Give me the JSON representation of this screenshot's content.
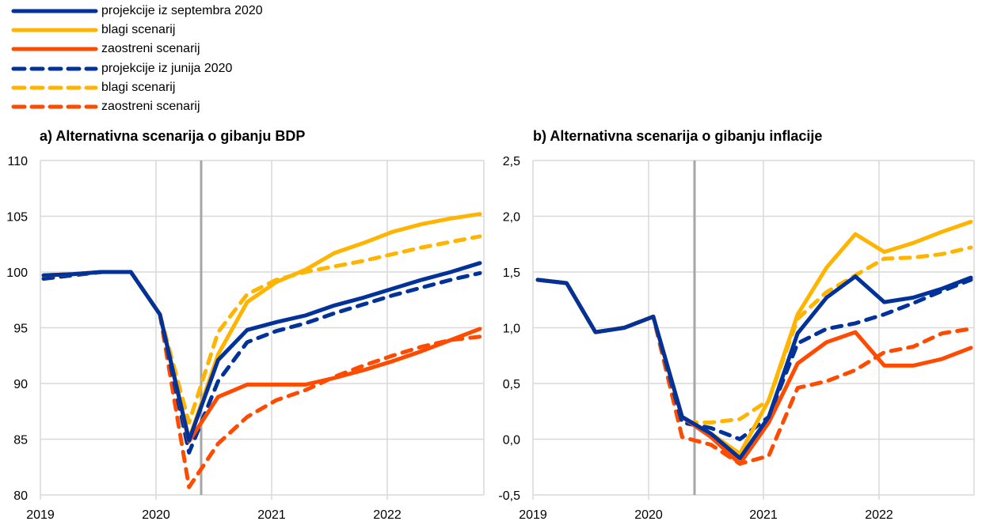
{
  "legend": [
    {
      "label": "projekcije iz septembra 2020",
      "color": "#003299",
      "style": "solid"
    },
    {
      "label": "blagi scenarij",
      "color": "#FFB400",
      "style": "solid"
    },
    {
      "label": "zaostreni scenarij",
      "color": "#FF4B00",
      "style": "solid"
    },
    {
      "label": "projekcije iz junija 2020",
      "color": "#003299",
      "style": "dashed"
    },
    {
      "label": "blagi scenarij",
      "color": "#FFB400",
      "style": "dashed"
    },
    {
      "label": "zaostreni scenarij",
      "color": "#FF4B00",
      "style": "dashed"
    }
  ],
  "chart_data": [
    {
      "type": "line",
      "title": "a) Alternativna scenarija o gibanju BDP",
      "xlabel": "",
      "ylabel": "",
      "x_ticks": [
        "2019",
        "2020",
        "2021",
        "2022"
      ],
      "x": [
        "2019Q1",
        "2019Q2",
        "2019Q3",
        "2019Q4",
        "2020Q1",
        "2020Q2",
        "2020Q3",
        "2020Q4",
        "2021Q1",
        "2021Q2",
        "2021Q3",
        "2021Q4",
        "2022Q1",
        "2022Q2",
        "2022Q3",
        "2022Q4"
      ],
      "y_ticks": [
        "110",
        "105",
        "100",
        "95",
        "90",
        "85",
        "80"
      ],
      "ylim": [
        80,
        110
      ],
      "grid": true,
      "vertical_marker": "2020Q2",
      "series": [
        {
          "name": "projekcije iz septembra 2020",
          "color": "#003299",
          "style": "solid",
          "values": [
            99.7,
            99.8,
            100.0,
            100.0,
            96.2,
            84.9,
            92.1,
            94.8,
            95.5,
            96.1,
            97.0,
            97.7,
            98.5,
            99.3,
            100.0,
            100.8
          ]
        },
        {
          "name": "blagi scenarij",
          "color": "#FFB400",
          "style": "solid",
          "values": [
            99.7,
            99.8,
            100.0,
            100.0,
            96.2,
            85.0,
            92.6,
            97.3,
            99.1,
            100.2,
            101.7,
            102.6,
            103.6,
            104.3,
            104.8,
            105.2
          ]
        },
        {
          "name": "zaostreni scenarij",
          "color": "#FF4B00",
          "style": "solid",
          "values": [
            99.7,
            99.8,
            100.0,
            100.0,
            96.2,
            84.8,
            88.8,
            89.9,
            89.9,
            89.9,
            90.5,
            91.2,
            92.0,
            92.9,
            93.9,
            94.9
          ]
        },
        {
          "name": "projekcije iz junija 2020",
          "color": "#003299",
          "style": "dashed",
          "values": [
            99.4,
            99.7,
            100.0,
            100.0,
            96.2,
            83.8,
            90.2,
            93.7,
            94.7,
            95.4,
            96.3,
            97.1,
            97.9,
            98.6,
            99.3,
            99.9
          ]
        },
        {
          "name": "blagi scenarij",
          "color": "#FFB400",
          "style": "dashed",
          "values": [
            99.4,
            99.7,
            100.0,
            100.0,
            96.2,
            86.5,
            94.6,
            98.0,
            99.3,
            100.0,
            100.5,
            101.0,
            101.6,
            102.2,
            102.7,
            103.2
          ]
        },
        {
          "name": "zaostreni scenarij",
          "color": "#FF4B00",
          "style": "dashed",
          "values": [
            99.4,
            99.7,
            100.0,
            100.0,
            96.2,
            80.7,
            84.6,
            87.0,
            88.5,
            89.4,
            90.6,
            91.6,
            92.5,
            93.3,
            93.9,
            94.2
          ]
        }
      ]
    },
    {
      "type": "line",
      "title": "b) Alternativna scenarija o gibanju inflacije",
      "xlabel": "",
      "ylabel": "",
      "x_ticks": [
        "2019",
        "2020",
        "2021",
        "2022"
      ],
      "x": [
        "2019Q1",
        "2019Q2",
        "2019Q3",
        "2019Q4",
        "2020Q1",
        "2020Q2",
        "2020Q3",
        "2020Q4",
        "2021Q1",
        "2021Q2",
        "2021Q3",
        "2021Q4",
        "2022Q1",
        "2022Q2",
        "2022Q3",
        "2022Q4"
      ],
      "y_ticks": [
        "2,5",
        "2,0",
        "1,5",
        "1,0",
        "0,5",
        "0,0",
        "-0,5"
      ],
      "ylim": [
        -0.5,
        2.5
      ],
      "grid": true,
      "vertical_marker": "2020Q2",
      "series": [
        {
          "name": "projekcije iz septembra 2020",
          "color": "#003299",
          "style": "solid",
          "values": [
            1.43,
            1.4,
            0.96,
            1.0,
            1.1,
            0.2,
            0.05,
            -0.17,
            0.2,
            0.95,
            1.27,
            1.46,
            1.23,
            1.27,
            1.35,
            1.45
          ]
        },
        {
          "name": "blagi scenarij",
          "color": "#FFB400",
          "style": "solid",
          "values": [
            1.43,
            1.4,
            0.96,
            1.0,
            1.1,
            0.2,
            0.05,
            -0.13,
            0.35,
            1.12,
            1.54,
            1.84,
            1.68,
            1.76,
            1.86,
            1.95
          ]
        },
        {
          "name": "zaostreni scenarij",
          "color": "#FF4B00",
          "style": "solid",
          "values": [
            1.43,
            1.4,
            0.96,
            1.0,
            1.1,
            0.2,
            0.02,
            -0.22,
            0.15,
            0.68,
            0.87,
            0.96,
            0.66,
            0.66,
            0.72,
            0.82
          ]
        },
        {
          "name": "projekcije iz junija 2020",
          "color": "#003299",
          "style": "dashed",
          "values": [
            1.43,
            1.4,
            0.96,
            1.0,
            1.1,
            0.15,
            0.1,
            0.0,
            0.2,
            0.86,
            0.99,
            1.04,
            1.12,
            1.22,
            1.33,
            1.43
          ]
        },
        {
          "name": "blagi scenarij",
          "color": "#FFB400",
          "style": "dashed",
          "values": [
            1.43,
            1.4,
            0.96,
            1.0,
            1.1,
            0.15,
            0.15,
            0.18,
            0.35,
            1.08,
            1.32,
            1.47,
            1.62,
            1.63,
            1.66,
            1.72
          ]
        },
        {
          "name": "zaostreni scenarij",
          "color": "#FF4B00",
          "style": "dashed",
          "values": [
            1.43,
            1.4,
            0.96,
            1.0,
            1.1,
            0.02,
            -0.05,
            -0.22,
            -0.15,
            0.46,
            0.52,
            0.62,
            0.78,
            0.83,
            0.95,
            0.99
          ]
        }
      ]
    }
  ]
}
